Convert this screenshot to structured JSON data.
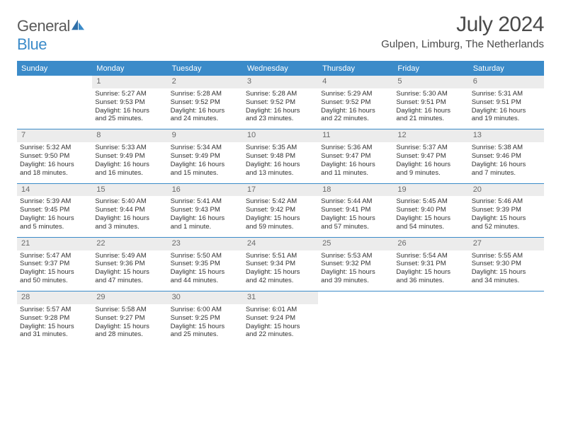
{
  "brand": {
    "part1": "General",
    "part2": "Blue"
  },
  "title": "July 2024",
  "location": "Gulpen, Limburg, The Netherlands",
  "colors": {
    "accent": "#3b8bc9",
    "headerText": "#ffffff",
    "dayBg": "#ececec",
    "dayText": "#6a6a6a",
    "bodyText": "#323232"
  },
  "dayNames": [
    "Sunday",
    "Monday",
    "Tuesday",
    "Wednesday",
    "Thursday",
    "Friday",
    "Saturday"
  ],
  "weeks": [
    {
      "nums": [
        "",
        "1",
        "2",
        "3",
        "4",
        "5",
        "6"
      ],
      "cells": [
        [],
        [
          "Sunrise: 5:27 AM",
          "Sunset: 9:53 PM",
          "Daylight: 16 hours",
          "and 25 minutes."
        ],
        [
          "Sunrise: 5:28 AM",
          "Sunset: 9:52 PM",
          "Daylight: 16 hours",
          "and 24 minutes."
        ],
        [
          "Sunrise: 5:28 AM",
          "Sunset: 9:52 PM",
          "Daylight: 16 hours",
          "and 23 minutes."
        ],
        [
          "Sunrise: 5:29 AM",
          "Sunset: 9:52 PM",
          "Daylight: 16 hours",
          "and 22 minutes."
        ],
        [
          "Sunrise: 5:30 AM",
          "Sunset: 9:51 PM",
          "Daylight: 16 hours",
          "and 21 minutes."
        ],
        [
          "Sunrise: 5:31 AM",
          "Sunset: 9:51 PM",
          "Daylight: 16 hours",
          "and 19 minutes."
        ]
      ]
    },
    {
      "nums": [
        "7",
        "8",
        "9",
        "10",
        "11",
        "12",
        "13"
      ],
      "cells": [
        [
          "Sunrise: 5:32 AM",
          "Sunset: 9:50 PM",
          "Daylight: 16 hours",
          "and 18 minutes."
        ],
        [
          "Sunrise: 5:33 AM",
          "Sunset: 9:49 PM",
          "Daylight: 16 hours",
          "and 16 minutes."
        ],
        [
          "Sunrise: 5:34 AM",
          "Sunset: 9:49 PM",
          "Daylight: 16 hours",
          "and 15 minutes."
        ],
        [
          "Sunrise: 5:35 AM",
          "Sunset: 9:48 PM",
          "Daylight: 16 hours",
          "and 13 minutes."
        ],
        [
          "Sunrise: 5:36 AM",
          "Sunset: 9:47 PM",
          "Daylight: 16 hours",
          "and 11 minutes."
        ],
        [
          "Sunrise: 5:37 AM",
          "Sunset: 9:47 PM",
          "Daylight: 16 hours",
          "and 9 minutes."
        ],
        [
          "Sunrise: 5:38 AM",
          "Sunset: 9:46 PM",
          "Daylight: 16 hours",
          "and 7 minutes."
        ]
      ]
    },
    {
      "nums": [
        "14",
        "15",
        "16",
        "17",
        "18",
        "19",
        "20"
      ],
      "cells": [
        [
          "Sunrise: 5:39 AM",
          "Sunset: 9:45 PM",
          "Daylight: 16 hours",
          "and 5 minutes."
        ],
        [
          "Sunrise: 5:40 AM",
          "Sunset: 9:44 PM",
          "Daylight: 16 hours",
          "and 3 minutes."
        ],
        [
          "Sunrise: 5:41 AM",
          "Sunset: 9:43 PM",
          "Daylight: 16 hours",
          "and 1 minute."
        ],
        [
          "Sunrise: 5:42 AM",
          "Sunset: 9:42 PM",
          "Daylight: 15 hours",
          "and 59 minutes."
        ],
        [
          "Sunrise: 5:44 AM",
          "Sunset: 9:41 PM",
          "Daylight: 15 hours",
          "and 57 minutes."
        ],
        [
          "Sunrise: 5:45 AM",
          "Sunset: 9:40 PM",
          "Daylight: 15 hours",
          "and 54 minutes."
        ],
        [
          "Sunrise: 5:46 AM",
          "Sunset: 9:39 PM",
          "Daylight: 15 hours",
          "and 52 minutes."
        ]
      ]
    },
    {
      "nums": [
        "21",
        "22",
        "23",
        "24",
        "25",
        "26",
        "27"
      ],
      "cells": [
        [
          "Sunrise: 5:47 AM",
          "Sunset: 9:37 PM",
          "Daylight: 15 hours",
          "and 50 minutes."
        ],
        [
          "Sunrise: 5:49 AM",
          "Sunset: 9:36 PM",
          "Daylight: 15 hours",
          "and 47 minutes."
        ],
        [
          "Sunrise: 5:50 AM",
          "Sunset: 9:35 PM",
          "Daylight: 15 hours",
          "and 44 minutes."
        ],
        [
          "Sunrise: 5:51 AM",
          "Sunset: 9:34 PM",
          "Daylight: 15 hours",
          "and 42 minutes."
        ],
        [
          "Sunrise: 5:53 AM",
          "Sunset: 9:32 PM",
          "Daylight: 15 hours",
          "and 39 minutes."
        ],
        [
          "Sunrise: 5:54 AM",
          "Sunset: 9:31 PM",
          "Daylight: 15 hours",
          "and 36 minutes."
        ],
        [
          "Sunrise: 5:55 AM",
          "Sunset: 9:30 PM",
          "Daylight: 15 hours",
          "and 34 minutes."
        ]
      ]
    },
    {
      "nums": [
        "28",
        "29",
        "30",
        "31",
        "",
        "",
        ""
      ],
      "cells": [
        [
          "Sunrise: 5:57 AM",
          "Sunset: 9:28 PM",
          "Daylight: 15 hours",
          "and 31 minutes."
        ],
        [
          "Sunrise: 5:58 AM",
          "Sunset: 9:27 PM",
          "Daylight: 15 hours",
          "and 28 minutes."
        ],
        [
          "Sunrise: 6:00 AM",
          "Sunset: 9:25 PM",
          "Daylight: 15 hours",
          "and 25 minutes."
        ],
        [
          "Sunrise: 6:01 AM",
          "Sunset: 9:24 PM",
          "Daylight: 15 hours",
          "and 22 minutes."
        ],
        [],
        [],
        []
      ]
    }
  ]
}
